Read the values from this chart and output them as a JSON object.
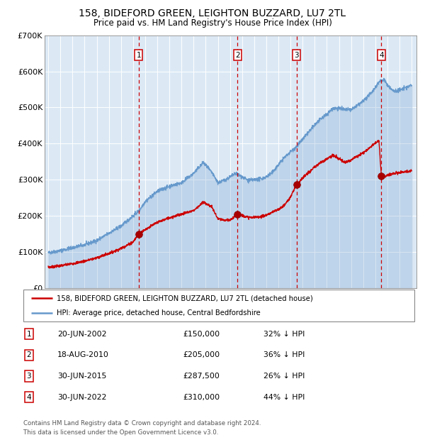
{
  "title": "158, BIDEFORD GREEN, LEIGHTON BUZZARD, LU7 2TL",
  "subtitle": "Price paid vs. HM Land Registry's House Price Index (HPI)",
  "legend_label_red": "158, BIDEFORD GREEN, LEIGHTON BUZZARD, LU7 2TL (detached house)",
  "legend_label_blue": "HPI: Average price, detached house, Central Bedfordshire",
  "footer_line1": "Contains HM Land Registry data © Crown copyright and database right 2024.",
  "footer_line2": "This data is licensed under the Open Government Licence v3.0.",
  "transaction_display": [
    {
      "num": "1",
      "date": "20-JUN-2002",
      "price": "£150,000",
      "pct": "32% ↓ HPI"
    },
    {
      "num": "2",
      "date": "18-AUG-2010",
      "price": "£205,000",
      "pct": "36% ↓ HPI"
    },
    {
      "num": "3",
      "date": "30-JUN-2015",
      "price": "£287,500",
      "pct": "26% ↓ HPI"
    },
    {
      "num": "4",
      "date": "30-JUN-2022",
      "price": "£310,000",
      "pct": "44% ↓ HPI"
    }
  ],
  "yticks": [
    0,
    100000,
    200000,
    300000,
    400000,
    500000,
    600000,
    700000
  ],
  "ytick_labels": [
    "£0",
    "£100K",
    "£200K",
    "£300K",
    "£400K",
    "£500K",
    "£600K",
    "£700K"
  ],
  "bg_color": "#dce9f5",
  "red_color": "#cc0000",
  "blue_color": "#6699cc",
  "grid_color": "#ffffff",
  "title_fontsize": 10,
  "subtitle_fontsize": 8.5,
  "axis_fontsize": 8,
  "trans_dates_float": [
    2002.47,
    2010.63,
    2015.5,
    2022.5
  ],
  "trans_prices": [
    150000,
    205000,
    287500,
    310000
  ]
}
